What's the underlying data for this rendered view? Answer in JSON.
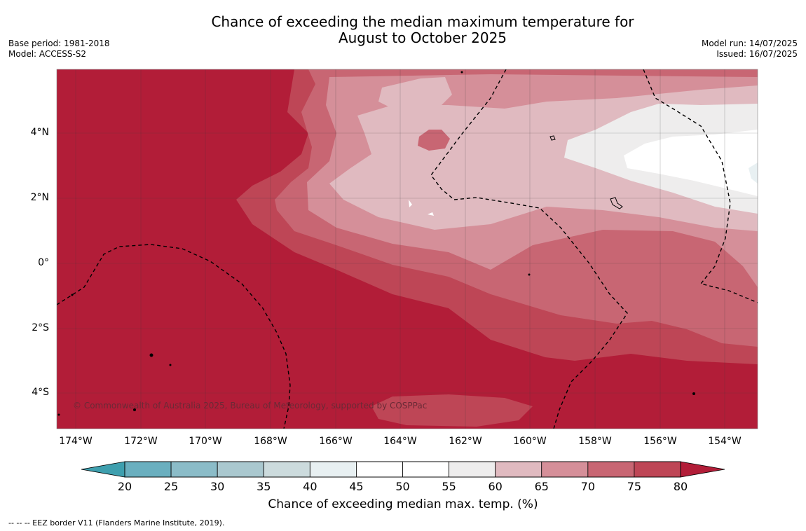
{
  "title": {
    "line1": "Chance of exceeding the median maximum temperature for",
    "line2": "August to October 2025"
  },
  "meta_left": {
    "base_period": "Base period: 1981-2018",
    "model": "Model: ACCESS-S2"
  },
  "meta_right": {
    "model_run": "Model run: 14/07/2025",
    "issued": "Issued: 16/07/2025"
  },
  "map": {
    "lat_labels": [
      "4°N",
      "2°N",
      "0°",
      "2°S",
      "4°S"
    ],
    "lon_labels": [
      "174°W",
      "172°W",
      "170°W",
      "168°W",
      "166°W",
      "164°W",
      "162°W",
      "160°W",
      "158°W",
      "156°W",
      "154°W"
    ],
    "copyright": "© Commonwealth of Australia 2025, Bureau of Meteorology, supported by COSPPac",
    "colors": {
      "deep_red": "#b21d38",
      "land": "#000000",
      "eez_border": "#000000"
    }
  },
  "colorbar": {
    "title": "Chance of exceeding median max. temp. (%)",
    "ticks": [
      "20",
      "25",
      "30",
      "35",
      "40",
      "45",
      "50",
      "55",
      "60",
      "65",
      "70",
      "75",
      "80"
    ],
    "low_extend_color": "#3e9fae",
    "high_extend_color": "#b21d38",
    "bins": [
      {
        "range": "20-25",
        "color": "#6aafbf"
      },
      {
        "range": "25-30",
        "color": "#8bbcc8"
      },
      {
        "range": "30-35",
        "color": "#aac8cf"
      },
      {
        "range": "35-40",
        "color": "#ccdbdd"
      },
      {
        "range": "40-45",
        "color": "#e8f0f2"
      },
      {
        "range": "45-50",
        "color": "#ffffff"
      },
      {
        "range": "50-55",
        "color": "#ffffff"
      },
      {
        "range": "55-60",
        "color": "#eeeded"
      },
      {
        "range": "60-65",
        "color": "#e0bac0"
      },
      {
        "range": "65-70",
        "color": "#d58f99"
      },
      {
        "range": "70-75",
        "color": "#c86673"
      },
      {
        "range": "75-80",
        "color": "#be4656"
      }
    ]
  },
  "footnote": "--  --  -- EEZ border V11 (Flanders Marine Institute, 2019)."
}
